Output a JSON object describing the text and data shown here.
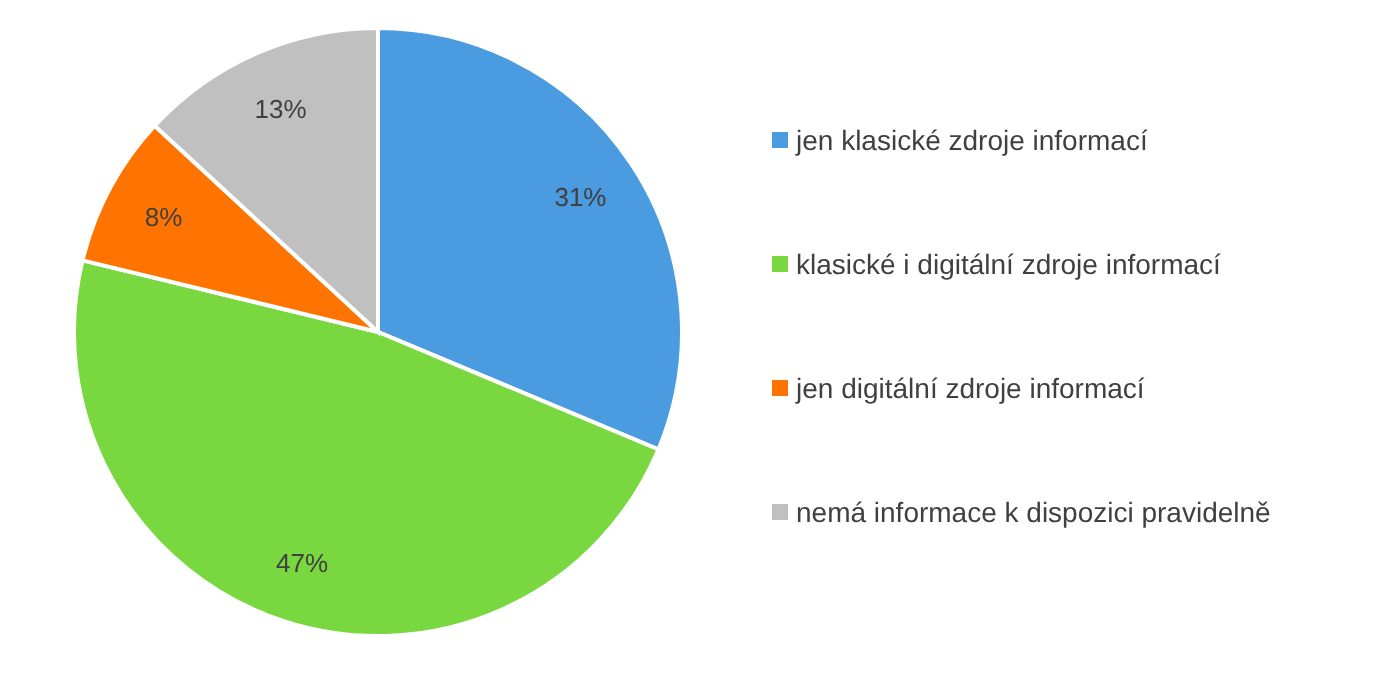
{
  "chart_data": {
    "type": "pie",
    "categories": [
      "jen klasické zdroje informací",
      "klasické i digitální zdroje informací",
      "jen digitální zdroje informací",
      "nemá informace k dispozici pravidelně"
    ],
    "values": [
      31,
      47,
      8,
      13
    ],
    "value_labels": [
      "31%",
      "47%",
      "8%",
      "13%"
    ],
    "colors": [
      "#4a9be0",
      "#79d840",
      "#ff7400",
      "#c0c0c0"
    ],
    "legend": "right"
  }
}
